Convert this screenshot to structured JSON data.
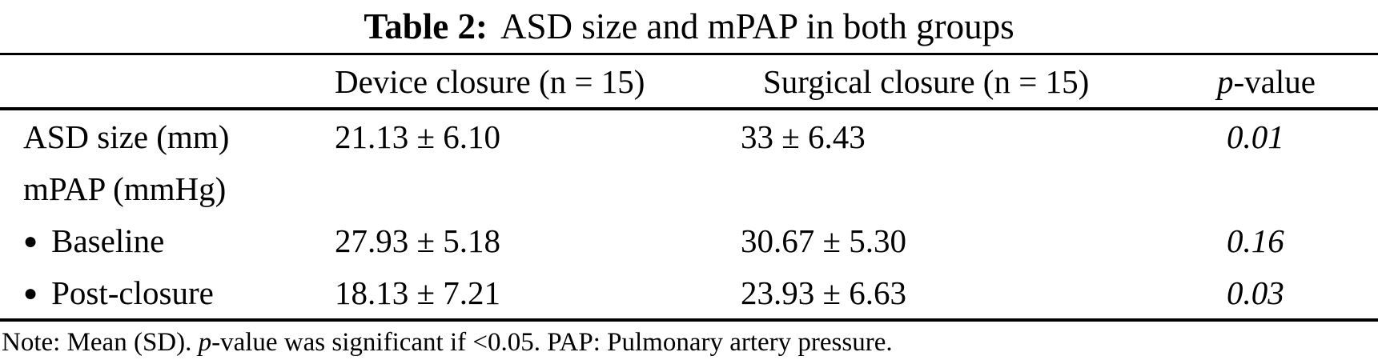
{
  "caption": {
    "label": "Table 2:",
    "text": "ASD size and mPAP in both groups"
  },
  "table": {
    "columns": {
      "rowhead": "",
      "device": "Device closure (n = 15)",
      "surgical": "Surgical closure (n = 15)",
      "p_italic": "p",
      "p_rest": "-value"
    },
    "rows": [
      {
        "bullet": "",
        "label": "ASD size (mm)",
        "device": "21.13 ± 6.10",
        "surgical": "33 ± 6.43",
        "p": "0.01"
      },
      {
        "bullet": "",
        "label": "mPAP (mmHg)",
        "device": "",
        "surgical": "",
        "p": ""
      },
      {
        "bullet": "●",
        "label": "Baseline",
        "device": "27.93 ± 5.18",
        "surgical": "30.67 ± 5.30",
        "p": "0.16"
      },
      {
        "bullet": "●",
        "label": "Post-closure",
        "device": "18.13 ± 7.21",
        "surgical": "23.93 ± 6.63",
        "p": "0.03"
      }
    ]
  },
  "note": {
    "prefix": "Note: Mean (SD). ",
    "p_italic": "p",
    "suffix": "-value was significant if <0.05. PAP: Pulmonary artery pressure."
  },
  "colors": {
    "text": "#000000",
    "background": "#ffffff",
    "rule": "#000000"
  }
}
